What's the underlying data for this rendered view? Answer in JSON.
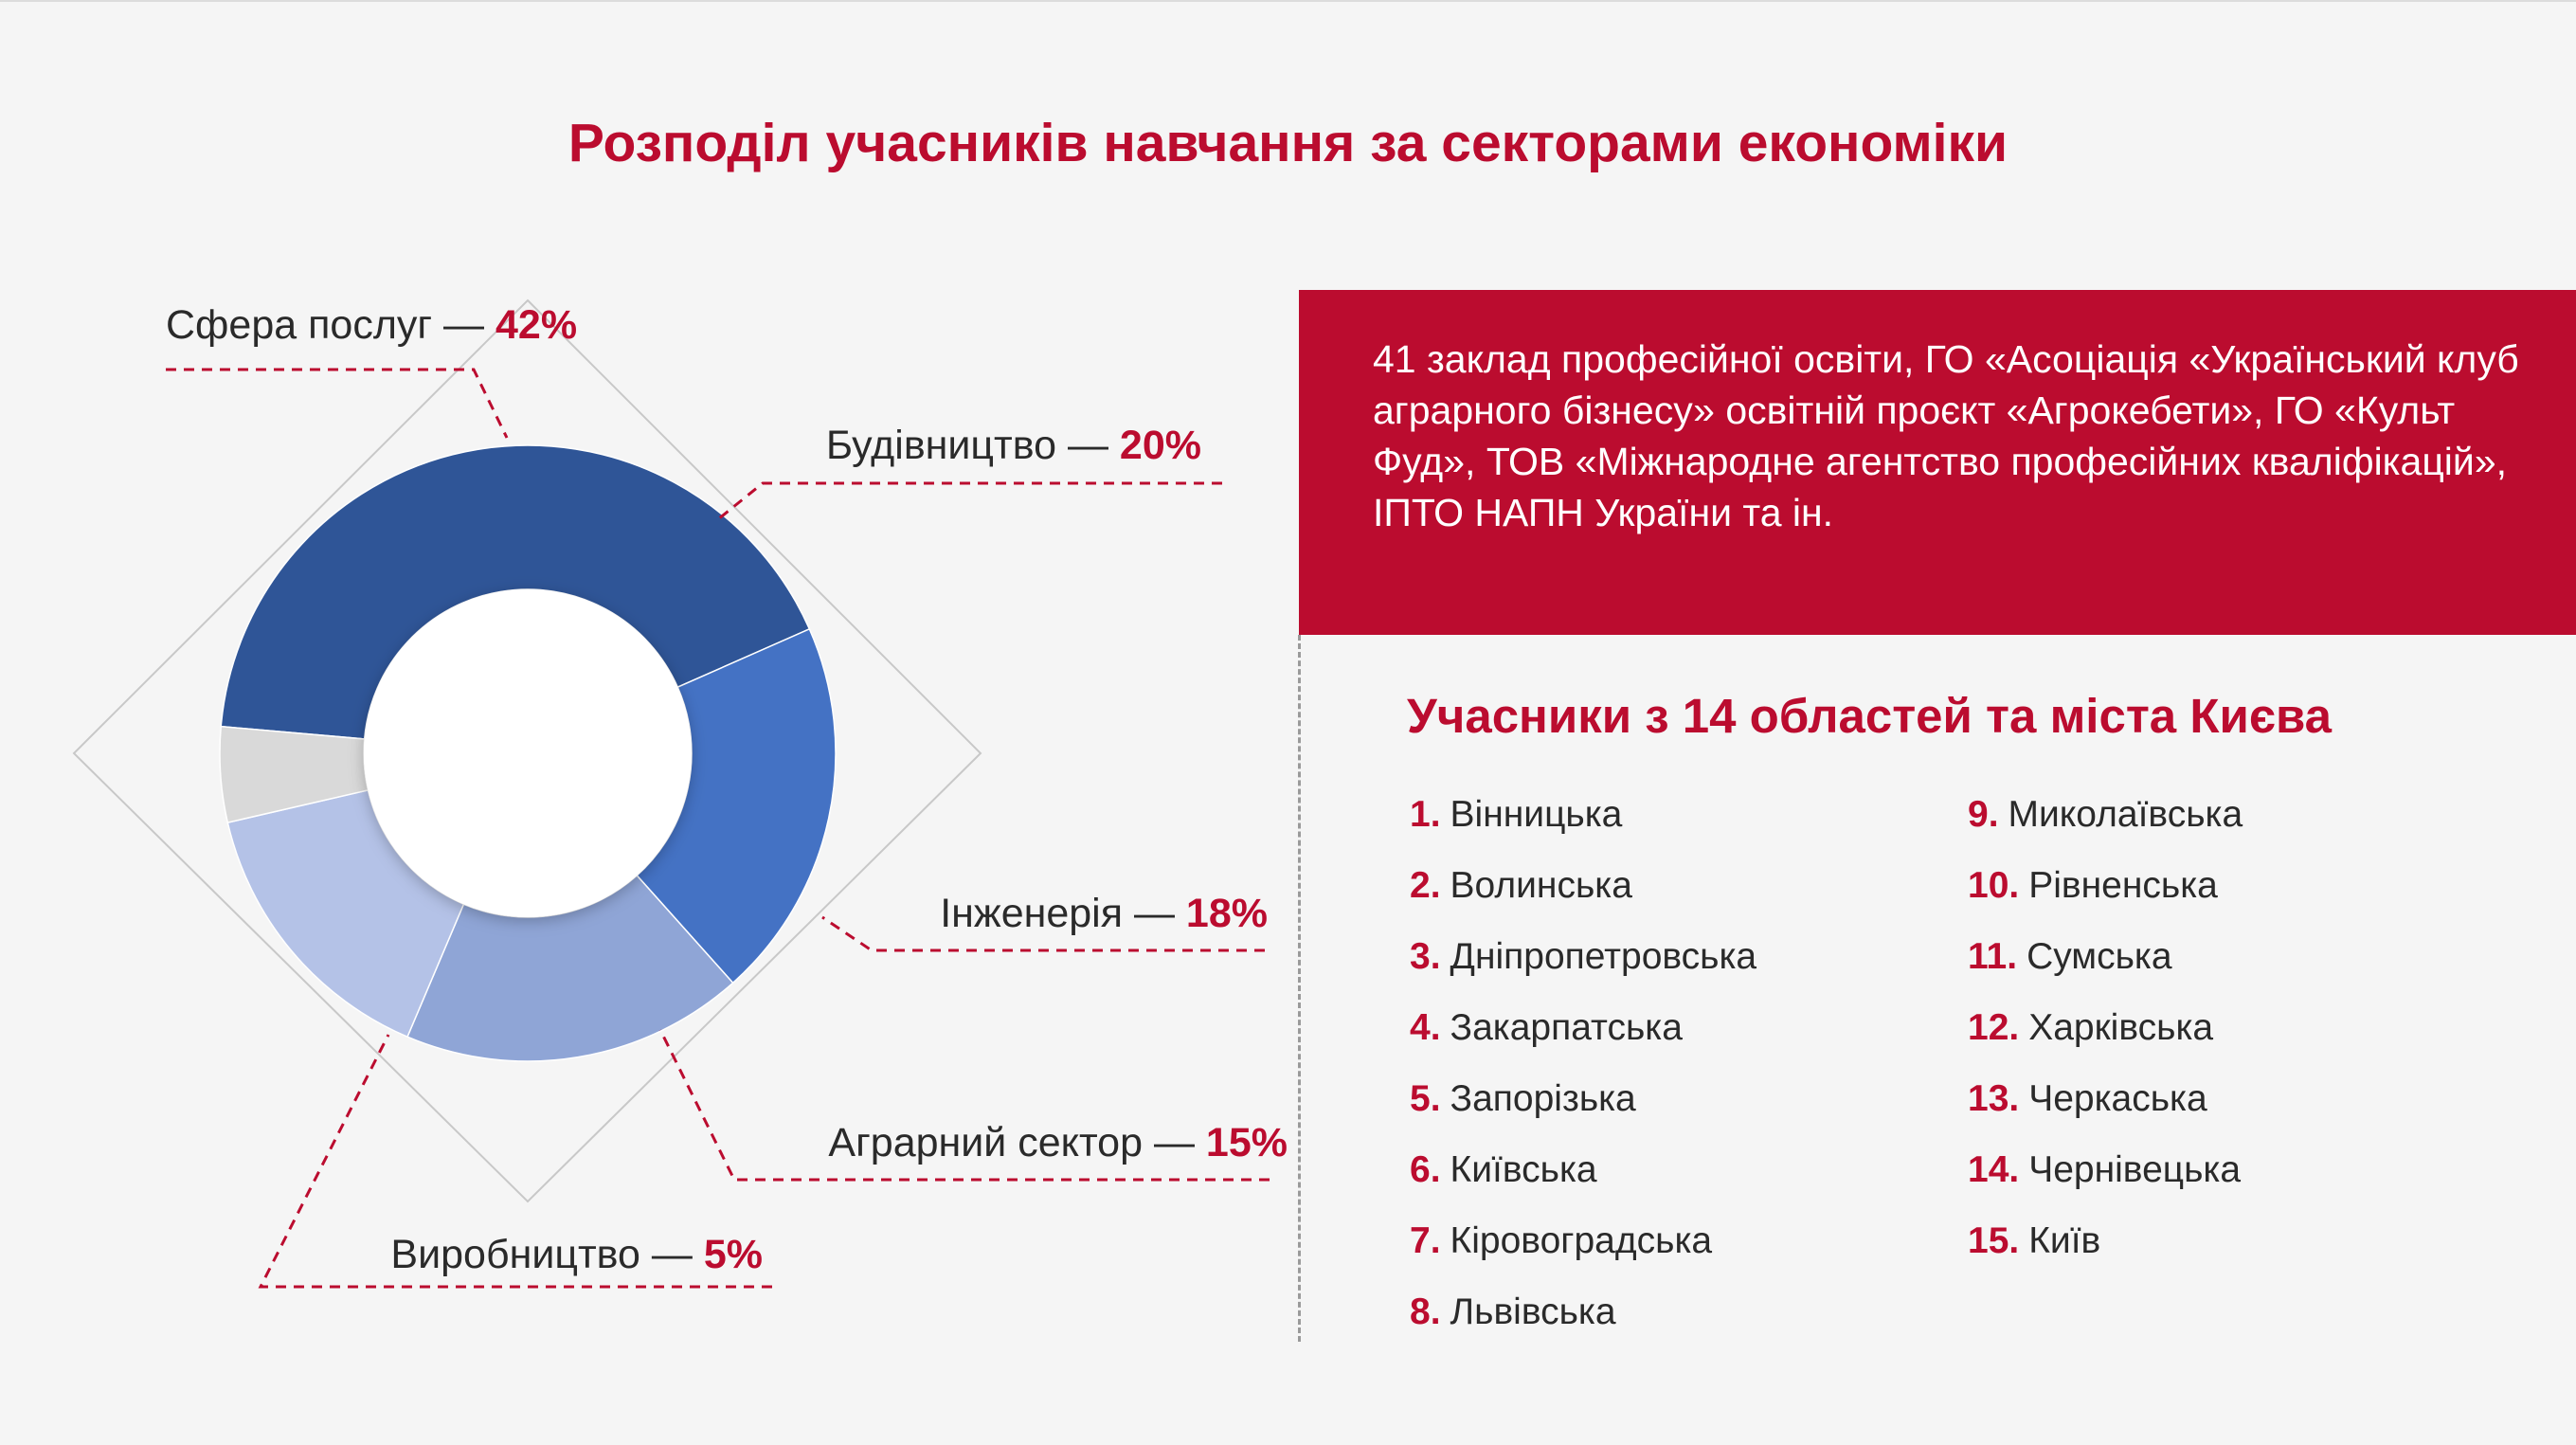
{
  "title": "Розподіл учасників навчання за секторами економіки",
  "colors": {
    "accent": "#bb0c2f",
    "background": "#f5f5f5",
    "slices": [
      "#2f5597",
      "#4472c4",
      "#8fa5d6",
      "#b4c2e7",
      "#d9d9d9"
    ]
  },
  "chart_data": {
    "type": "pie",
    "variant": "donut",
    "title": "Розподіл учасників навчання за секторами економіки",
    "series": [
      {
        "name": "Сфера послуг",
        "value": 42,
        "label": "Сфера послуг — ",
        "pct_label": "42%"
      },
      {
        "name": "Будівництво",
        "value": 20,
        "label": "Будівництво — ",
        "pct_label": "20%"
      },
      {
        "name": "Інженерія",
        "value": 18,
        "label": "Інженерія — ",
        "pct_label": "18%"
      },
      {
        "name": "Аграрний сектор",
        "value": 15,
        "label": "Аграрний сектор — ",
        "pct_label": "15%"
      },
      {
        "name": "Виробництво",
        "value": 5,
        "label": "Виробництво — ",
        "pct_label": "5%"
      }
    ]
  },
  "info_box": {
    "text": "41 заклад професійної освіти, ГО «Асоціація «Український клуб аграрного бізнесу» освітній проєкт «Агрокебети», ГО «Культ Фуд», ТОВ «Міжнародне агентство професійних кваліфікацій», ІПТО НАПН України та ін."
  },
  "regions": {
    "title": "Учасники з 14 областей  та міста Києва",
    "left": [
      {
        "num": "1.",
        "name": "Вінницька"
      },
      {
        "num": "2.",
        "name": "Волинська"
      },
      {
        "num": "3.",
        "name": "Дніпропетровська"
      },
      {
        "num": "4.",
        "name": "Закарпатська"
      },
      {
        "num": "5.",
        "name": "Запорізька"
      },
      {
        "num": "6.",
        "name": "Київська"
      },
      {
        "num": "7.",
        "name": "Кіровоградська"
      },
      {
        "num": "8.",
        "name": "Львівська"
      }
    ],
    "right": [
      {
        "num": "9.",
        "name": "Миколаївська"
      },
      {
        "num": "10.",
        "name": "Рівненська"
      },
      {
        "num": "11.",
        "name": "Сумська"
      },
      {
        "num": "12.",
        "name": "Харківська"
      },
      {
        "num": "13.",
        "name": "Черкаська"
      },
      {
        "num": "14.",
        "name": "Чернівецька"
      },
      {
        "num": "15.",
        "name": "Київ"
      }
    ]
  }
}
